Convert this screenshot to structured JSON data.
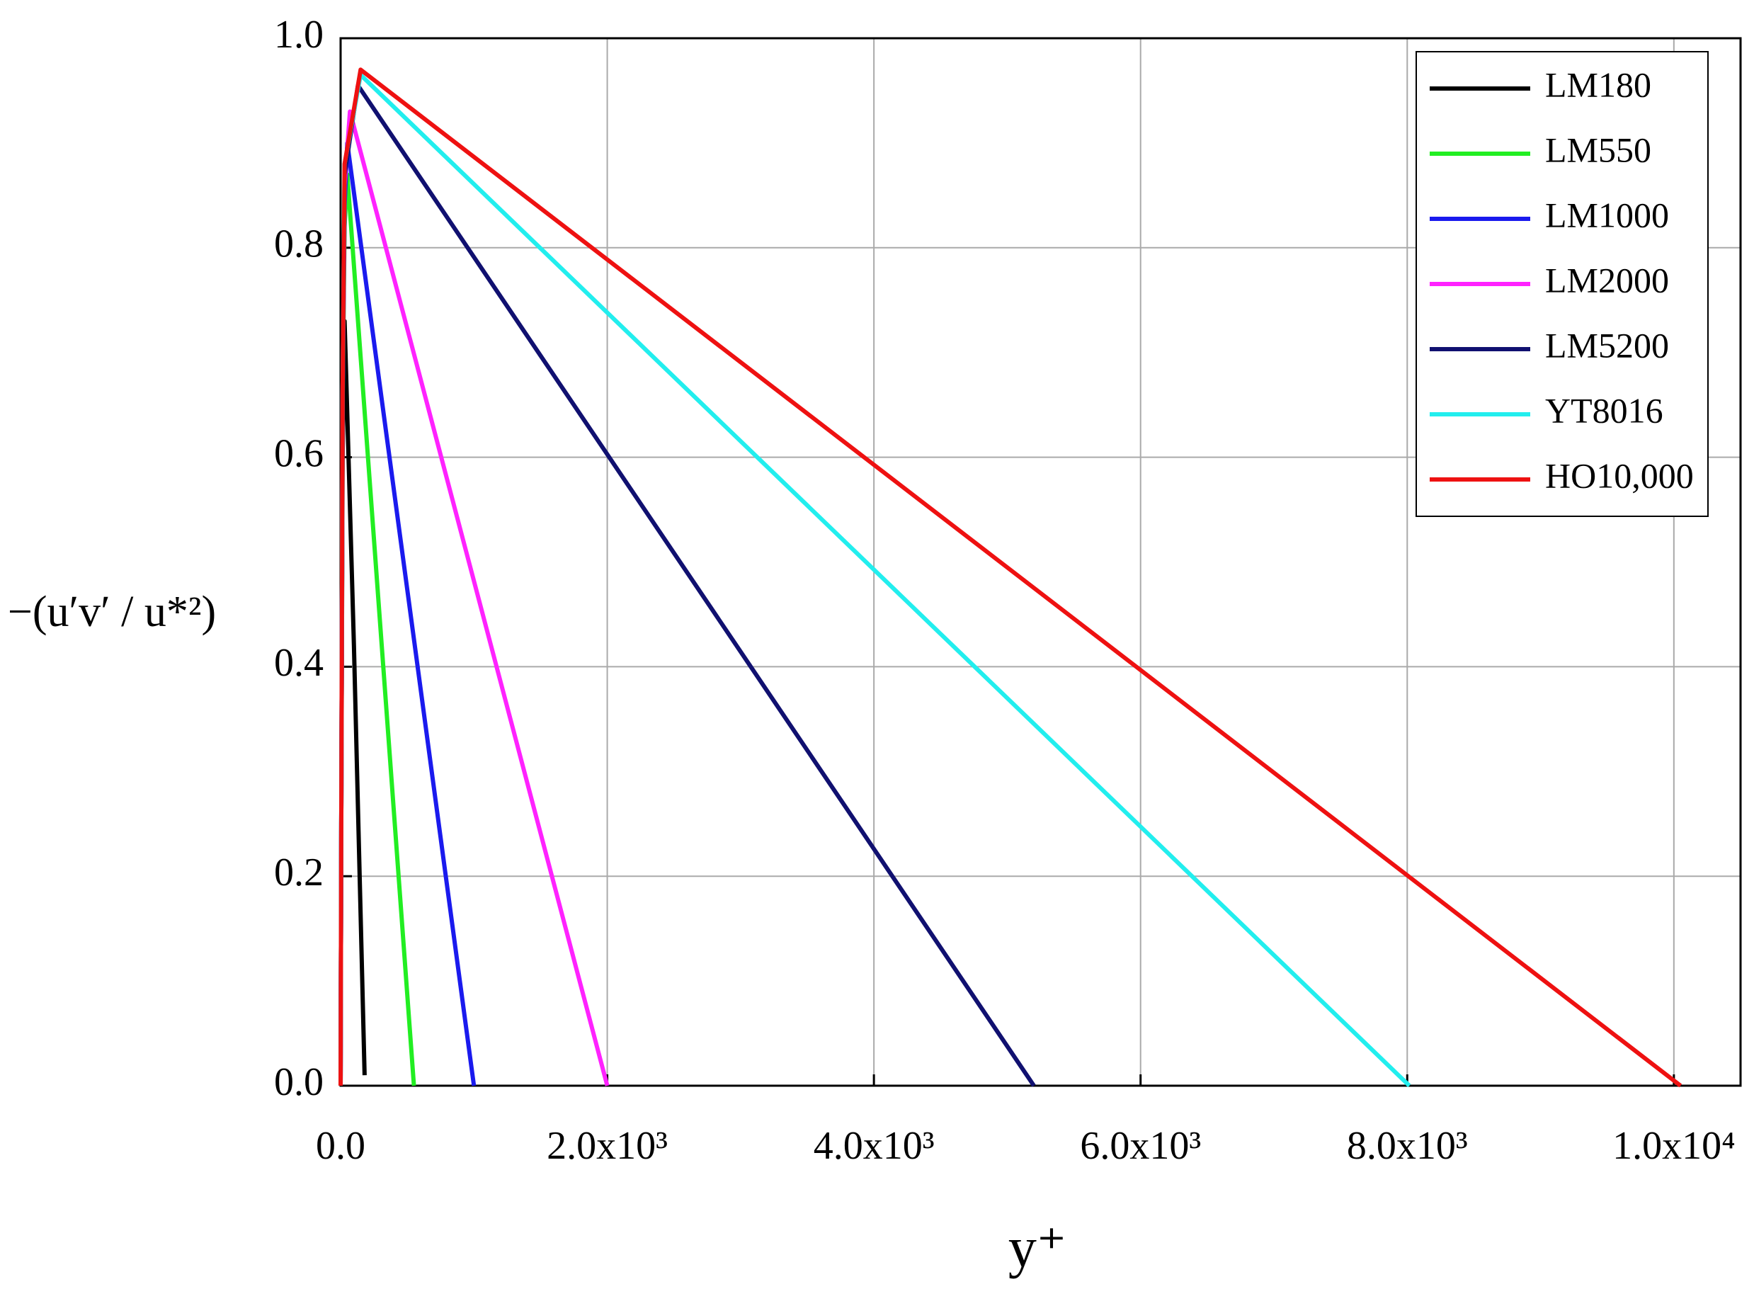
{
  "chart_data": {
    "type": "line",
    "xlabel": "y⁺",
    "ylabel": "−(u′v′ / u*²)",
    "xlim": [
      0,
      10500
    ],
    "ylim": [
      0,
      1.0
    ],
    "xticks": [
      {
        "value": 0,
        "label": "0.0"
      },
      {
        "value": 2000,
        "label": "2.0x10³"
      },
      {
        "value": 4000,
        "label": "4.0x10³"
      },
      {
        "value": 6000,
        "label": "6.0x10³"
      },
      {
        "value": 8000,
        "label": "8.0x10³"
      },
      {
        "value": 10000,
        "label": "1.0x10⁴"
      }
    ],
    "yticks": [
      {
        "value": 0,
        "label": "0.0"
      },
      0.2,
      0.4,
      0.6,
      0.8,
      {
        "value": 1.0,
        "label": "1.0"
      }
    ],
    "grid": true,
    "legend": "upper right",
    "series": [
      {
        "name": "LM180",
        "color": "#000000",
        "x": [
          0,
          5,
          15,
          30,
          100,
          180
        ],
        "values": [
          0,
          0.25,
          0.6,
          0.73,
          0.42,
          0.01
        ]
      },
      {
        "name": "LM550",
        "color": "#22ee22",
        "x": [
          0,
          5,
          15,
          30,
          50,
          550
        ],
        "values": [
          0,
          0.25,
          0.65,
          0.82,
          0.87,
          0
        ]
      },
      {
        "name": "LM1000",
        "color": "#1a1aee",
        "x": [
          0,
          5,
          15,
          30,
          50,
          1000
        ],
        "values": [
          0,
          0.25,
          0.65,
          0.84,
          0.9,
          0
        ]
      },
      {
        "name": "LM2000",
        "color": "#ff22ff",
        "x": [
          0,
          5,
          15,
          30,
          70,
          2000
        ],
        "values": [
          0,
          0.25,
          0.66,
          0.86,
          0.93,
          0
        ]
      },
      {
        "name": "LM5200",
        "color": "#101070",
        "x": [
          0,
          5,
          15,
          30,
          130,
          5200
        ],
        "values": [
          0,
          0.25,
          0.66,
          0.87,
          0.955,
          0
        ]
      },
      {
        "name": "YT8016",
        "color": "#22eeee",
        "x": [
          0,
          5,
          15,
          30,
          150,
          8016
        ],
        "values": [
          0,
          0.25,
          0.66,
          0.88,
          0.965,
          0
        ]
      },
      {
        "name": "HO10,000",
        "color": "#ee1111",
        "x": [
          0,
          5,
          15,
          30,
          150,
          10050
        ],
        "values": [
          0,
          0.25,
          0.66,
          0.88,
          0.97,
          0
        ]
      }
    ]
  }
}
